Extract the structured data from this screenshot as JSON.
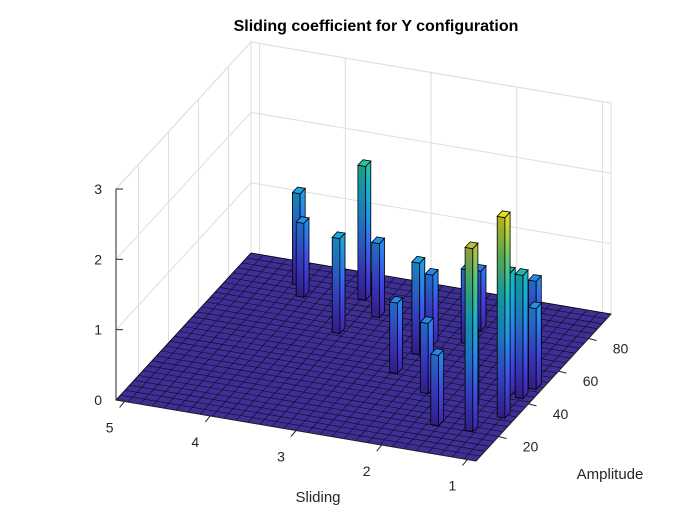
{
  "chart_data": {
    "type": "bar3",
    "title": "Sliding coefficient for Y configuration",
    "xlabel": "Sliding",
    "ylabel": "Amplitude",
    "zlabel": "",
    "x_ticks": [
      "1",
      "2",
      "3",
      "4",
      "5"
    ],
    "y_ticks": [
      "20",
      "40",
      "60",
      "80"
    ],
    "z_ticks": [
      "0",
      "1",
      "2",
      "3"
    ],
    "xlim": [
      0.9,
      5.1
    ],
    "ylim": [
      5,
      95
    ],
    "zlim": [
      0,
      3
    ],
    "grid": true,
    "colormap": "parula",
    "floor_color": "#3d2f93",
    "bars": [
      {
        "x": 4.2,
        "y": 78,
        "z": 1.05
      },
      {
        "x": 4.35,
        "y": 84,
        "z": 1.3
      },
      {
        "x": 3.5,
        "y": 62,
        "z": 1.35
      },
      {
        "x": 3.55,
        "y": 82,
        "z": 1.9
      },
      {
        "x": 3.25,
        "y": 74,
        "z": 1.05
      },
      {
        "x": 2.5,
        "y": 58,
        "z": 1.3
      },
      {
        "x": 2.55,
        "y": 46,
        "z": 1.0
      },
      {
        "x": 2.45,
        "y": 64,
        "z": 1.0
      },
      {
        "x": 2.1,
        "y": 76,
        "z": 0.85
      },
      {
        "x": 2.1,
        "y": 68,
        "z": 1.05
      },
      {
        "x": 2.05,
        "y": 38,
        "z": 1.0
      },
      {
        "x": 1.65,
        "y": 22,
        "z": 1.0
      },
      {
        "x": 1.45,
        "y": 34,
        "z": 1.05
      },
      {
        "x": 1.35,
        "y": 70,
        "z": 1.0
      },
      {
        "x": 1.2,
        "y": 44,
        "z": 1.75
      },
      {
        "x": 1.25,
        "y": 22,
        "z": 2.6
      },
      {
        "x": 1.05,
        "y": 32,
        "z": 2.85
      },
      {
        "x": 1.05,
        "y": 44,
        "z": 1.75
      },
      {
        "x": 1.0,
        "y": 50,
        "z": 1.15
      }
    ]
  }
}
